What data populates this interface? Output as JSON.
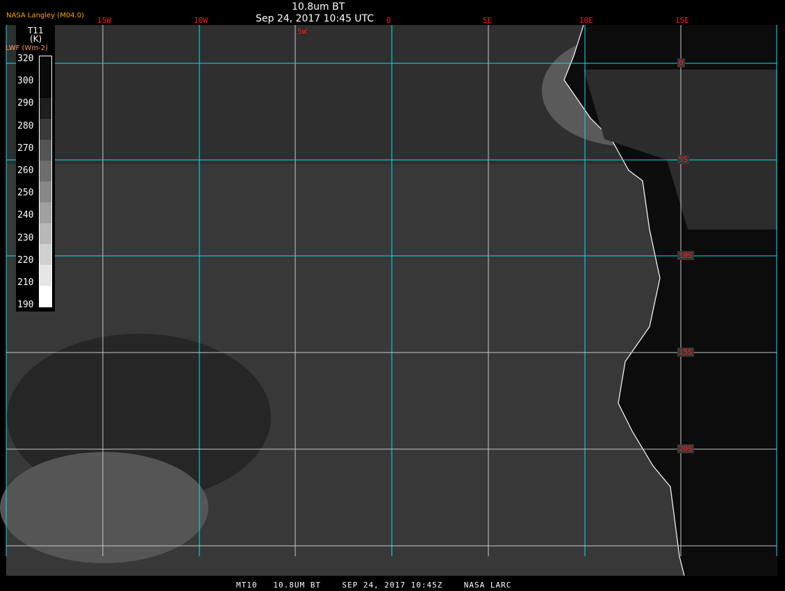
{
  "header": {
    "title": "10.8um BT",
    "datetime": "Sep 24, 2017 10:45 UTC",
    "provider": "NASA Langley (M04.0)"
  },
  "legend": {
    "var1": "T11",
    "unit1": "(K)",
    "var2": "LWF (Wm-2)",
    "ticks": [
      "320",
      "300",
      "290",
      "280",
      "270",
      "260",
      "250",
      "240",
      "230",
      "220",
      "210",
      "190"
    ],
    "shades": [
      "#0a0a0a",
      "#0a0a0a",
      "#1e1e1e",
      "#3a3a3a",
      "#545454",
      "#6e6e6e",
      "#888",
      "#a0a0a0",
      "#b8b8b8",
      "#d0d0d0",
      "#e6e6e6",
      "#fff"
    ]
  },
  "lon_labels": [
    "15W",
    "10W",
    "5W",
    "0",
    "5E",
    "10E",
    "15E"
  ],
  "lat_labels": [
    "0",
    "5S",
    "10S",
    "15S",
    "20S"
  ],
  "footer": "MT10   10.8UM BT    SEP 24, 2017 10:45Z    NASA LARC",
  "colors": {
    "grid": "#00e5ee",
    "grid_minor": "#c8c8c8",
    "label": "#ff1a1a",
    "ocean": "#383838",
    "land": "#0c0c0c",
    "provider": "#ffa500"
  }
}
